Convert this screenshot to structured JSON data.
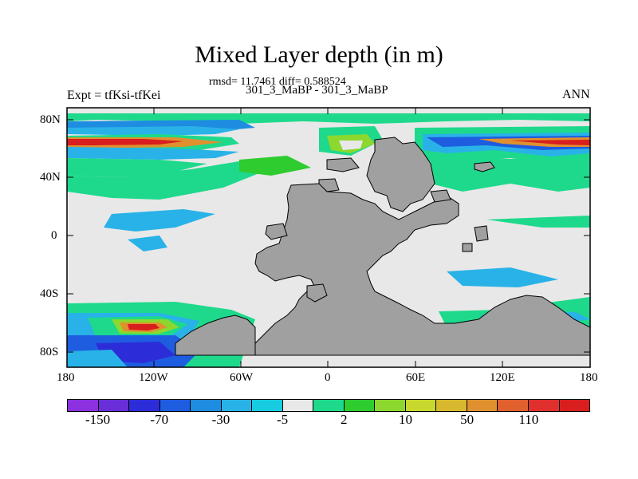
{
  "title": "Mixed Layer depth (in m)",
  "stats": "rmsd= 11.7461 diff= 0.588524",
  "subtitle": "301_3_MaBP - 301_3_MaBP",
  "left_string": "Expt = tfKsi-tfKei",
  "right_string": "ANN",
  "lat_labels": [
    "80N",
    "40N",
    "0",
    "40S",
    "80S"
  ],
  "lon_labels": [
    "180",
    "120W",
    "60W",
    "0",
    "60E",
    "120E",
    "180"
  ],
  "colorbar": {
    "colors": [
      "#8C30E0",
      "#6A2ED8",
      "#2C2CD8",
      "#1E5CE0",
      "#1E8CE0",
      "#29B2E8",
      "#17CCE0",
      "#E8E8E8",
      "#1ED98C",
      "#2ECC2E",
      "#8CD82E",
      "#C8D82E",
      "#D8B82E",
      "#E0902E",
      "#E0602E",
      "#E0302E",
      "#D81E1E"
    ],
    "labels": [
      "-150",
      "-70",
      "-30",
      "-5",
      "2",
      "10",
      "50",
      "110"
    ]
  },
  "legend_colors": {
    "background": "#E8E8E8",
    "land": "#A0A0A0"
  }
}
